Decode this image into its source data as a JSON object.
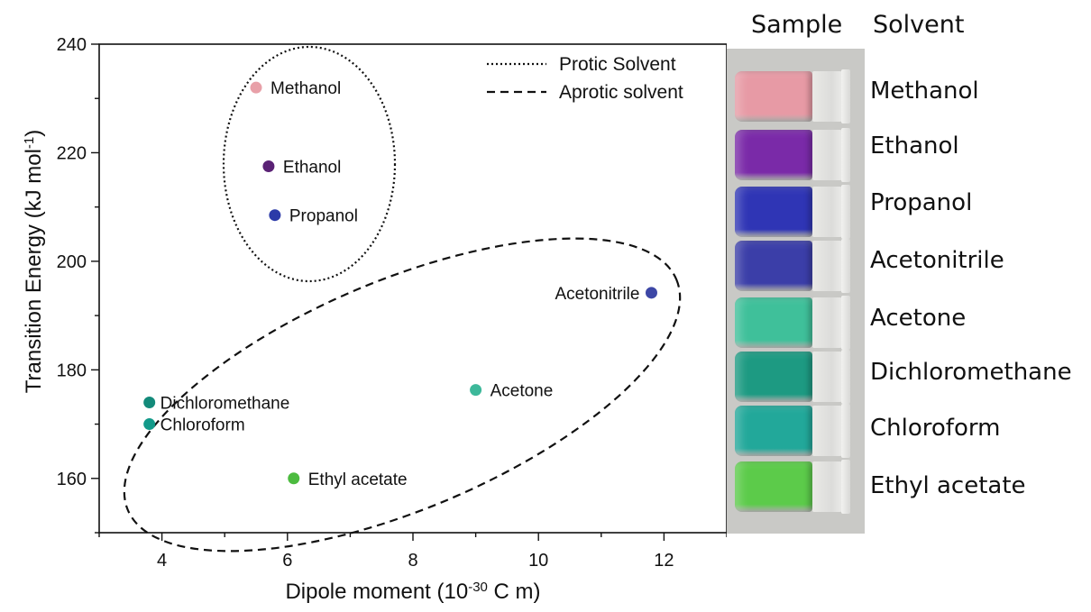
{
  "chart_data": {
    "type": "scatter",
    "xlabel_main": "Dipole moment (10",
    "xlabel_sup": "-30",
    "xlabel_tail": " C m)",
    "ylabel_main": "Transition Energy (kJ mol",
    "ylabel_sup": "-1",
    "ylabel_tail": ")",
    "xlim": [
      3.0,
      13.0
    ],
    "ylim": [
      150,
      240
    ],
    "x_ticks": [
      "4",
      "6",
      "8",
      "10",
      "12"
    ],
    "y_ticks": [
      "160",
      "180",
      "200",
      "220",
      "240"
    ],
    "grid": false,
    "legend_position": "top-right",
    "legend": [
      {
        "label": "Protic Solvent",
        "style": "dotted"
      },
      {
        "label": "Aprotic solvent",
        "style": "dashed"
      }
    ],
    "points": [
      {
        "label": "Methanol",
        "x": 5.5,
        "y": 232.0,
        "color": "#e8a0a8"
      },
      {
        "label": "Ethanol",
        "x": 5.7,
        "y": 217.5,
        "color": "#5a2275"
      },
      {
        "label": "Propanol",
        "x": 5.8,
        "y": 208.5,
        "color": "#2b3aa8"
      },
      {
        "label": "Acetonitrile",
        "x": 11.8,
        "y": 194.2,
        "color": "#3d47a6"
      },
      {
        "label": "Acetone",
        "x": 9.0,
        "y": 176.3,
        "color": "#3db89a"
      },
      {
        "label": "Dichloromethane",
        "x": 3.8,
        "y": 174.0,
        "color": "#138a7a"
      },
      {
        "label": "Chloroform",
        "x": 3.8,
        "y": 170.0,
        "color": "#139a8a"
      },
      {
        "label": "Ethyl acetate",
        "x": 6.1,
        "y": 160.0,
        "color": "#4cbb3f"
      }
    ]
  },
  "photo_panel": {
    "sample_header": "Sample",
    "solvent_header": "Solvent",
    "vials": [
      {
        "solvent": "Methanol",
        "color": "#e79aa5"
      },
      {
        "solvent": "Ethanol",
        "color": "#7a2aa8"
      },
      {
        "solvent": "Propanol",
        "color": "#2f35b5"
      },
      {
        "solvent": "Acetonitrile",
        "color": "#3b3ea8"
      },
      {
        "solvent": "Acetone",
        "color": "#3fc09a"
      },
      {
        "solvent": "Dichloromethane",
        "color": "#1d9a82"
      },
      {
        "solvent": "Chloroform",
        "color": "#22a89a"
      },
      {
        "solvent": "Ethyl acetate",
        "color": "#5ccb4a"
      }
    ]
  }
}
